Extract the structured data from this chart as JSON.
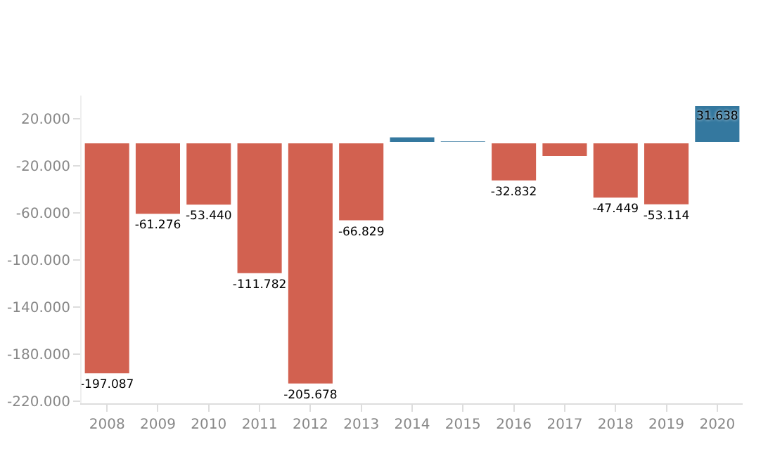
{
  "chart_data": {
    "type": "bar",
    "categories": [
      "2008",
      "2009",
      "2010",
      "2011",
      "2012",
      "2013",
      "2014",
      "2015",
      "2016",
      "2017",
      "2018",
      "2019",
      "2020"
    ],
    "values": [
      -197087,
      -61276,
      -53440,
      -111782,
      -205678,
      -66829,
      5000,
      1500,
      -32832,
      -12000,
      -47449,
      -53114,
      31638
    ],
    "value_labels": [
      "-197.087",
      "-61.276",
      "-53.440",
      "-111.782",
      "-205.678",
      "-66.829",
      null,
      null,
      "-32.832",
      null,
      "-47.449",
      "-53.114",
      "31.638"
    ],
    "colors": [
      "#d26150",
      "#d26150",
      "#d26150",
      "#d26150",
      "#d26150",
      "#d26150",
      "#34789f",
      "#34789f",
      "#d26150",
      "#d26150",
      "#d26150",
      "#d26150",
      "#34789f"
    ],
    "ylim": [
      -222000,
      40000
    ],
    "yticks": [
      {
        "value": 20000,
        "label": "20.000"
      },
      {
        "value": -20000,
        "label": "-20.000"
      },
      {
        "value": -60000,
        "label": "-60.000"
      },
      {
        "value": -100000,
        "label": "-100.000"
      },
      {
        "value": -140000,
        "label": "-140.000"
      },
      {
        "value": -180000,
        "label": "-180.000"
      },
      {
        "value": -220000,
        "label": "-220.000"
      }
    ],
    "grid": false
  }
}
